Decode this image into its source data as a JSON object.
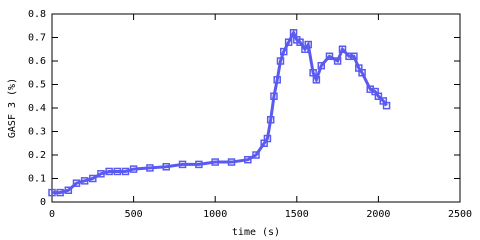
{
  "chart_data": {
    "type": "line",
    "x_label": "time (s)",
    "y_label": "GASF 3 (%)",
    "x": [
      0,
      50,
      100,
      150,
      200,
      250,
      300,
      350,
      400,
      450,
      500,
      600,
      700,
      800,
      900,
      1000,
      1100,
      1200,
      1250,
      1300,
      1320,
      1340,
      1360,
      1380,
      1400,
      1420,
      1450,
      1480,
      1500,
      1520,
      1550,
      1570,
      1600,
      1620,
      1650,
      1700,
      1750,
      1780,
      1820,
      1850,
      1880,
      1900,
      1950,
      1980,
      2000,
      2030,
      2050
    ],
    "series": [
      {
        "name": "GASF 3",
        "color": "#5a5af0",
        "values": [
          0.04,
          0.04,
          0.05,
          0.08,
          0.09,
          0.1,
          0.12,
          0.13,
          0.13,
          0.13,
          0.14,
          0.145,
          0.15,
          0.16,
          0.16,
          0.17,
          0.17,
          0.18,
          0.2,
          0.25,
          0.27,
          0.35,
          0.45,
          0.52,
          0.6,
          0.64,
          0.68,
          0.72,
          0.69,
          0.68,
          0.65,
          0.67,
          0.55,
          0.52,
          0.58,
          0.62,
          0.6,
          0.65,
          0.62,
          0.62,
          0.57,
          0.55,
          0.48,
          0.47,
          0.45,
          0.43,
          0.41
        ]
      }
    ],
    "xlim": [
      0,
      2500
    ],
    "xticks": [
      0,
      500,
      1000,
      1500,
      2000,
      2500
    ],
    "ylim": [
      0,
      0.8
    ],
    "yticks": [
      0,
      0.1,
      0.2,
      0.3,
      0.4,
      0.5,
      0.6,
      0.7,
      0.8
    ]
  }
}
